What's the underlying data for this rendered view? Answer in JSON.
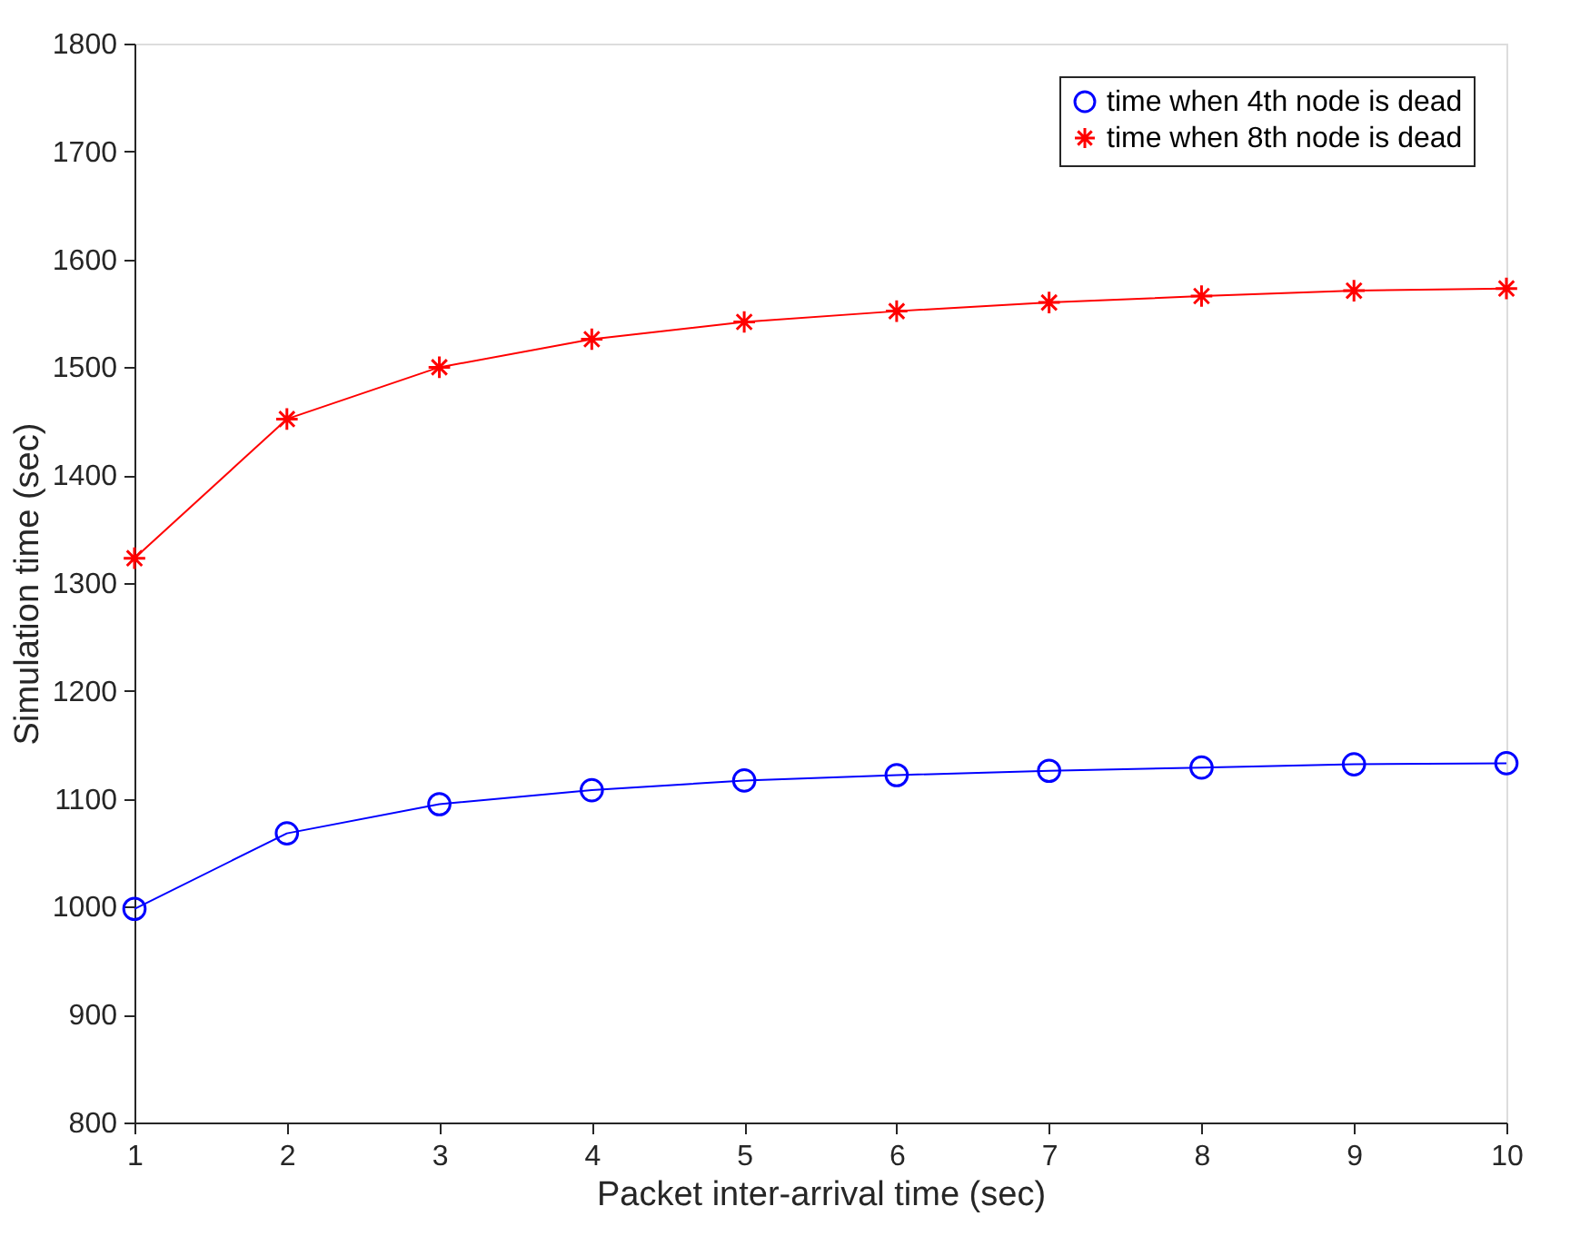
{
  "chart_data": {
    "type": "line",
    "xlabel": "Packet inter-arrival time (sec)",
    "ylabel": "Simulation time (sec)",
    "x": [
      1,
      2,
      3,
      4,
      5,
      6,
      7,
      8,
      9,
      10
    ],
    "series": [
      {
        "name": "time when 4th node is dead",
        "color": "#0000ff",
        "marker": "circle",
        "values": [
          998,
          1068,
          1095,
          1108,
          1117,
          1122,
          1126,
          1129,
          1132,
          1133
        ]
      },
      {
        "name": "time when 8th node is dead",
        "color": "#ff0000",
        "marker": "cross",
        "values": [
          1323,
          1452,
          1500,
          1526,
          1542,
          1552,
          1560,
          1566,
          1571,
          1573
        ]
      }
    ],
    "xlim": [
      1,
      10
    ],
    "xticks": [
      1,
      2,
      3,
      4,
      5,
      6,
      7,
      8,
      9,
      10
    ],
    "ylim": [
      800,
      1800
    ],
    "yticks": [
      800,
      900,
      1000,
      1100,
      1200,
      1300,
      1400,
      1500,
      1600,
      1700,
      1800
    ],
    "grid": false,
    "legend": "top right",
    "line_style": "solid"
  }
}
